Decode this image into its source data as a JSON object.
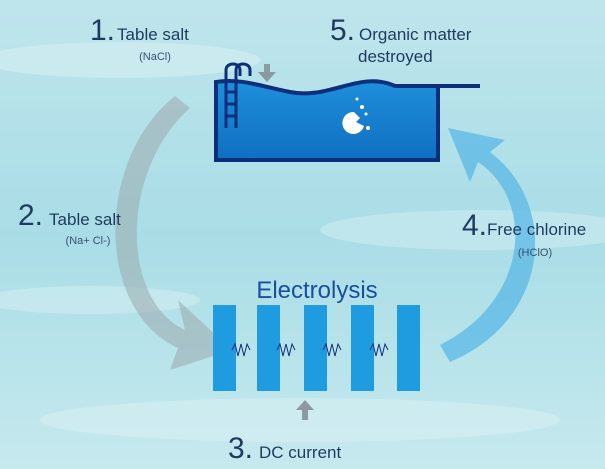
{
  "center": {
    "label": "Electrolysis"
  },
  "steps": [
    {
      "number": "1.",
      "label": "Table salt",
      "sub": "(NaCl)"
    },
    {
      "number": "2.",
      "label": "Table salt",
      "sub": "(Na+ Cl-)"
    },
    {
      "number": "3.",
      "label": "DC current"
    },
    {
      "number": "4.",
      "label": "Free chlorine",
      "sub": "(HClO)"
    },
    {
      "number": "5.",
      "lines": [
        "Organic matter",
        "destroyed"
      ]
    }
  ]
}
